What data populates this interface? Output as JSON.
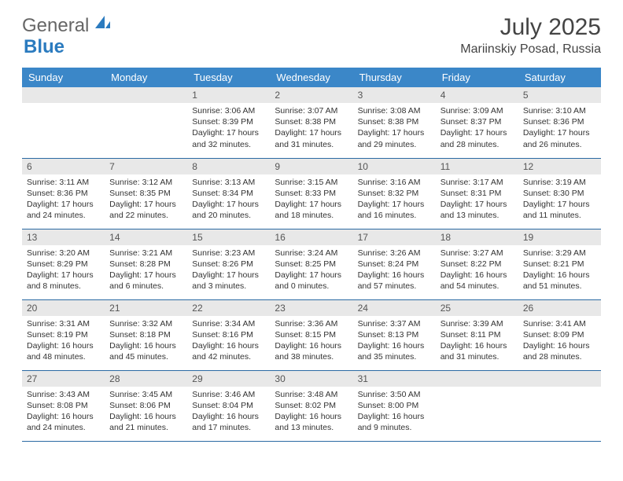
{
  "logo": {
    "part1": "General",
    "part2": "Blue"
  },
  "header": {
    "title": "July 2025",
    "location": "Mariinskiy Posad, Russia"
  },
  "colors": {
    "header_bg": "#3b87c8",
    "header_fg": "#ffffff",
    "daynum_bg": "#e8e8e8",
    "row_border": "#2b6aa3",
    "logo_blue": "#2b7bbf",
    "logo_gray": "#666666",
    "text": "#333333"
  },
  "days_of_week": [
    "Sunday",
    "Monday",
    "Tuesday",
    "Wednesday",
    "Thursday",
    "Friday",
    "Saturday"
  ],
  "weeks": [
    [
      {
        "n": "",
        "sr": "",
        "ss": "",
        "dl": ""
      },
      {
        "n": "",
        "sr": "",
        "ss": "",
        "dl": ""
      },
      {
        "n": "1",
        "sr": "Sunrise: 3:06 AM",
        "ss": "Sunset: 8:39 PM",
        "dl": "Daylight: 17 hours and 32 minutes."
      },
      {
        "n": "2",
        "sr": "Sunrise: 3:07 AM",
        "ss": "Sunset: 8:38 PM",
        "dl": "Daylight: 17 hours and 31 minutes."
      },
      {
        "n": "3",
        "sr": "Sunrise: 3:08 AM",
        "ss": "Sunset: 8:38 PM",
        "dl": "Daylight: 17 hours and 29 minutes."
      },
      {
        "n": "4",
        "sr": "Sunrise: 3:09 AM",
        "ss": "Sunset: 8:37 PM",
        "dl": "Daylight: 17 hours and 28 minutes."
      },
      {
        "n": "5",
        "sr": "Sunrise: 3:10 AM",
        "ss": "Sunset: 8:36 PM",
        "dl": "Daylight: 17 hours and 26 minutes."
      }
    ],
    [
      {
        "n": "6",
        "sr": "Sunrise: 3:11 AM",
        "ss": "Sunset: 8:36 PM",
        "dl": "Daylight: 17 hours and 24 minutes."
      },
      {
        "n": "7",
        "sr": "Sunrise: 3:12 AM",
        "ss": "Sunset: 8:35 PM",
        "dl": "Daylight: 17 hours and 22 minutes."
      },
      {
        "n": "8",
        "sr": "Sunrise: 3:13 AM",
        "ss": "Sunset: 8:34 PM",
        "dl": "Daylight: 17 hours and 20 minutes."
      },
      {
        "n": "9",
        "sr": "Sunrise: 3:15 AM",
        "ss": "Sunset: 8:33 PM",
        "dl": "Daylight: 17 hours and 18 minutes."
      },
      {
        "n": "10",
        "sr": "Sunrise: 3:16 AM",
        "ss": "Sunset: 8:32 PM",
        "dl": "Daylight: 17 hours and 16 minutes."
      },
      {
        "n": "11",
        "sr": "Sunrise: 3:17 AM",
        "ss": "Sunset: 8:31 PM",
        "dl": "Daylight: 17 hours and 13 minutes."
      },
      {
        "n": "12",
        "sr": "Sunrise: 3:19 AM",
        "ss": "Sunset: 8:30 PM",
        "dl": "Daylight: 17 hours and 11 minutes."
      }
    ],
    [
      {
        "n": "13",
        "sr": "Sunrise: 3:20 AM",
        "ss": "Sunset: 8:29 PM",
        "dl": "Daylight: 17 hours and 8 minutes."
      },
      {
        "n": "14",
        "sr": "Sunrise: 3:21 AM",
        "ss": "Sunset: 8:28 PM",
        "dl": "Daylight: 17 hours and 6 minutes."
      },
      {
        "n": "15",
        "sr": "Sunrise: 3:23 AM",
        "ss": "Sunset: 8:26 PM",
        "dl": "Daylight: 17 hours and 3 minutes."
      },
      {
        "n": "16",
        "sr": "Sunrise: 3:24 AM",
        "ss": "Sunset: 8:25 PM",
        "dl": "Daylight: 17 hours and 0 minutes."
      },
      {
        "n": "17",
        "sr": "Sunrise: 3:26 AM",
        "ss": "Sunset: 8:24 PM",
        "dl": "Daylight: 16 hours and 57 minutes."
      },
      {
        "n": "18",
        "sr": "Sunrise: 3:27 AM",
        "ss": "Sunset: 8:22 PM",
        "dl": "Daylight: 16 hours and 54 minutes."
      },
      {
        "n": "19",
        "sr": "Sunrise: 3:29 AM",
        "ss": "Sunset: 8:21 PM",
        "dl": "Daylight: 16 hours and 51 minutes."
      }
    ],
    [
      {
        "n": "20",
        "sr": "Sunrise: 3:31 AM",
        "ss": "Sunset: 8:19 PM",
        "dl": "Daylight: 16 hours and 48 minutes."
      },
      {
        "n": "21",
        "sr": "Sunrise: 3:32 AM",
        "ss": "Sunset: 8:18 PM",
        "dl": "Daylight: 16 hours and 45 minutes."
      },
      {
        "n": "22",
        "sr": "Sunrise: 3:34 AM",
        "ss": "Sunset: 8:16 PM",
        "dl": "Daylight: 16 hours and 42 minutes."
      },
      {
        "n": "23",
        "sr": "Sunrise: 3:36 AM",
        "ss": "Sunset: 8:15 PM",
        "dl": "Daylight: 16 hours and 38 minutes."
      },
      {
        "n": "24",
        "sr": "Sunrise: 3:37 AM",
        "ss": "Sunset: 8:13 PM",
        "dl": "Daylight: 16 hours and 35 minutes."
      },
      {
        "n": "25",
        "sr": "Sunrise: 3:39 AM",
        "ss": "Sunset: 8:11 PM",
        "dl": "Daylight: 16 hours and 31 minutes."
      },
      {
        "n": "26",
        "sr": "Sunrise: 3:41 AM",
        "ss": "Sunset: 8:09 PM",
        "dl": "Daylight: 16 hours and 28 minutes."
      }
    ],
    [
      {
        "n": "27",
        "sr": "Sunrise: 3:43 AM",
        "ss": "Sunset: 8:08 PM",
        "dl": "Daylight: 16 hours and 24 minutes."
      },
      {
        "n": "28",
        "sr": "Sunrise: 3:45 AM",
        "ss": "Sunset: 8:06 PM",
        "dl": "Daylight: 16 hours and 21 minutes."
      },
      {
        "n": "29",
        "sr": "Sunrise: 3:46 AM",
        "ss": "Sunset: 8:04 PM",
        "dl": "Daylight: 16 hours and 17 minutes."
      },
      {
        "n": "30",
        "sr": "Sunrise: 3:48 AM",
        "ss": "Sunset: 8:02 PM",
        "dl": "Daylight: 16 hours and 13 minutes."
      },
      {
        "n": "31",
        "sr": "Sunrise: 3:50 AM",
        "ss": "Sunset: 8:00 PM",
        "dl": "Daylight: 16 hours and 9 minutes."
      },
      {
        "n": "",
        "sr": "",
        "ss": "",
        "dl": ""
      },
      {
        "n": "",
        "sr": "",
        "ss": "",
        "dl": ""
      }
    ]
  ]
}
